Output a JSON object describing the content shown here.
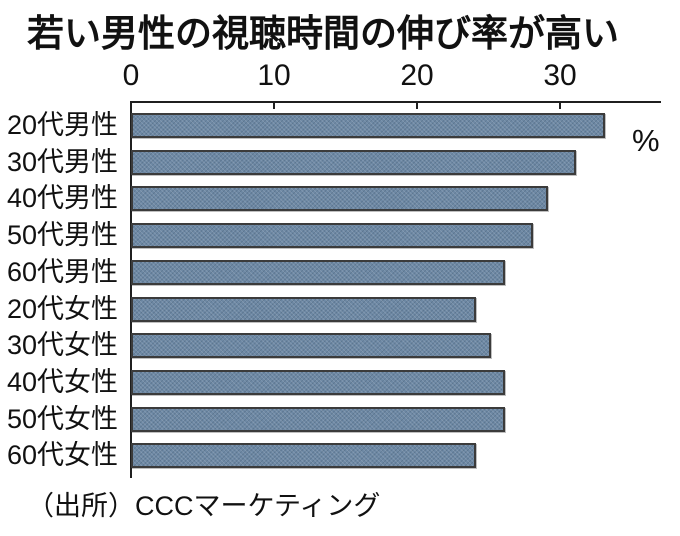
{
  "title_bar": "若い男性の視聴時間の伸び率が高い",
  "source": "（出所）CCCマーケティング",
  "colors": {
    "background": "#ffffff",
    "text": "#111111",
    "axis": "#1f1f1f",
    "bar_fill": "#6d88a4",
    "bar_border": "#3b3b3b"
  },
  "chart_data": {
    "type": "bar",
    "orientation": "horizontal",
    "title": "若い男性の視聴時間の伸び率が高い",
    "xlabel": "%",
    "ylabel": "",
    "categories": [
      "20代男性",
      "30代男性",
      "40代男性",
      "50代男性",
      "60代男性",
      "20代女性",
      "30代女性",
      "40代女性",
      "50代女性",
      "60代女性"
    ],
    "values": [
      33,
      31,
      29,
      28,
      26,
      24,
      25,
      26,
      26,
      24
    ],
    "xlim": [
      0,
      37
    ],
    "xticks": [
      0,
      10,
      20,
      30
    ],
    "unit": "%",
    "legend": false,
    "grid": false,
    "source": "（出所）CCCマーケティング"
  }
}
